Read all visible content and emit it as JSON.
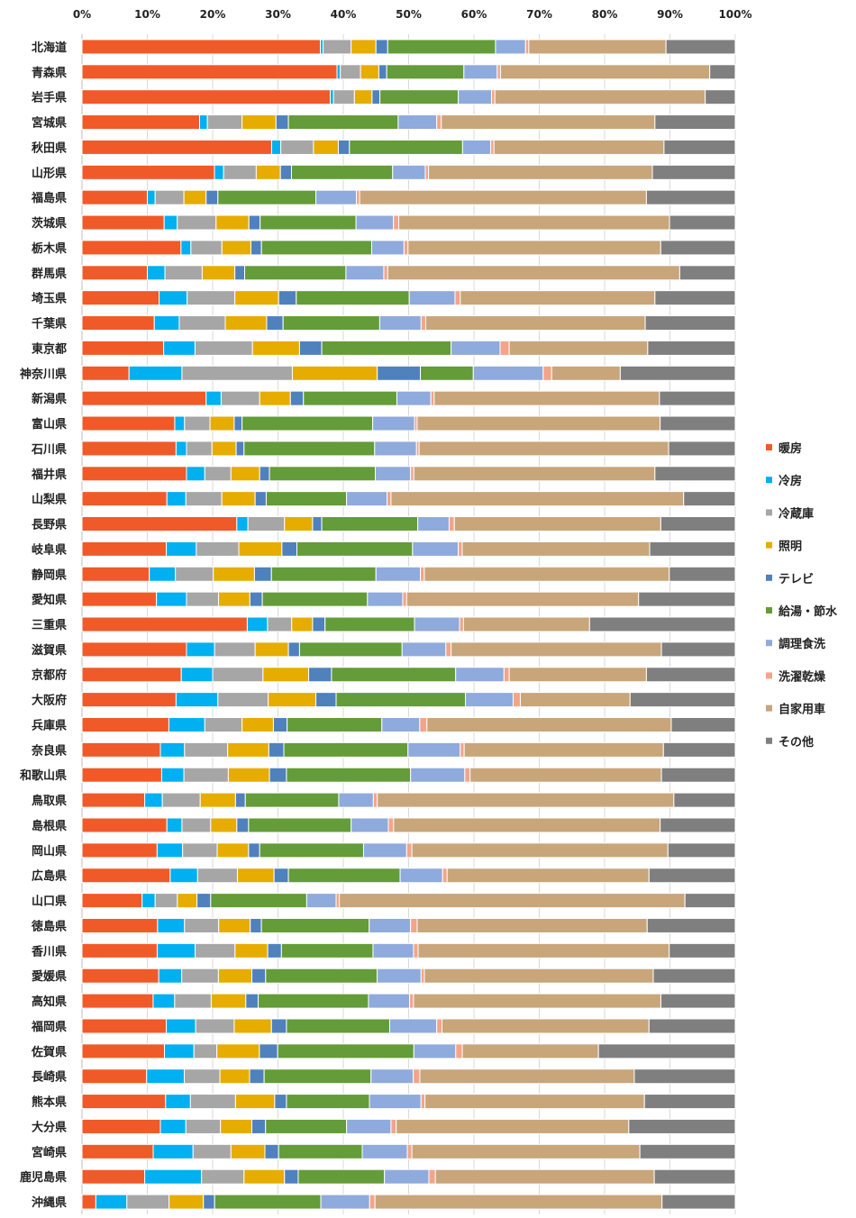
{
  "chart_data": {
    "type": "bar",
    "orientation": "horizontal",
    "stacked": "percent",
    "xlim": [
      0,
      100
    ],
    "x_ticks": [
      "0%",
      "10%",
      "20%",
      "30%",
      "40%",
      "50%",
      "60%",
      "70%",
      "80%",
      "90%",
      "100%"
    ],
    "x_tick_values": [
      0,
      10,
      20,
      30,
      40,
      50,
      60,
      70,
      80,
      90,
      100
    ],
    "grid": true,
    "legend_position": "right",
    "categories": [
      "北海道",
      "青森県",
      "岩手県",
      "宮城県",
      "秋田県",
      "山形県",
      "福島県",
      "茨城県",
      "栃木県",
      "群馬県",
      "埼玉県",
      "千葉県",
      "東京都",
      "神奈川県",
      "新潟県",
      "富山県",
      "石川県",
      "福井県",
      "山梨県",
      "長野県",
      "岐阜県",
      "静岡県",
      "愛知県",
      "三重県",
      "滋賀県",
      "京都府",
      "大阪府",
      "兵庫県",
      "奈良県",
      "和歌山県",
      "鳥取県",
      "島根県",
      "岡山県",
      "広島県",
      "山口県",
      "徳島県",
      "香川県",
      "愛媛県",
      "高知県",
      "福岡県",
      "佐賀県",
      "長崎県",
      "熊本県",
      "大分県",
      "宮崎県",
      "鹿児島県",
      "沖縄県"
    ],
    "series": [
      {
        "name": "暖房",
        "color": "#f05a28",
        "values": [
          36.5,
          39,
          38,
          18,
          29,
          20.3,
          10,
          12.5,
          15,
          10,
          11.8,
          11,
          12.5,
          7.2,
          19,
          14.2,
          14.4,
          16,
          13,
          23.7,
          12.9,
          10.3,
          11.4,
          25.3,
          16,
          15.2,
          14.4,
          13.3,
          12,
          12.2,
          9.6,
          13,
          11.5,
          13.5,
          9.2,
          11.5,
          11.5,
          11.7,
          10.9,
          12.9,
          12.6,
          9.8,
          12.8,
          12,
          10.9,
          9.6,
          2.1
        ]
      },
      {
        "name": "冷房",
        "color": "#00b0f0",
        "values": [
          0.4,
          0.5,
          0.5,
          1.2,
          1.4,
          1.4,
          1.2,
          2,
          1.5,
          2.7,
          4.3,
          3.8,
          4.8,
          8.1,
          2.3,
          1.5,
          1.6,
          2.8,
          2.9,
          1.7,
          4.6,
          4,
          4.6,
          3.1,
          4.3,
          4.8,
          6.4,
          5.5,
          3.7,
          3.4,
          2.7,
          2.3,
          3.9,
          4.2,
          2,
          4.1,
          5.8,
          3.5,
          3.3,
          4.5,
          4.5,
          5.7,
          3.8,
          3.9,
          6.1,
          8.7,
          4.7
        ]
      },
      {
        "name": "冷蔵庫",
        "color": "#a6a6a6",
        "values": [
          4.3,
          3.1,
          3.2,
          5.3,
          5,
          5,
          4.4,
          5.9,
          4.7,
          5.7,
          7.3,
          7,
          8.8,
          16.9,
          5.9,
          3.9,
          3.9,
          4,
          5.5,
          5.6,
          6.5,
          5.8,
          4.9,
          3.7,
          6.2,
          7.7,
          7.7,
          5.7,
          6.6,
          6.8,
          5.8,
          4.4,
          5.3,
          6.1,
          3.4,
          5.2,
          6.1,
          5.6,
          5.6,
          5.9,
          3.5,
          5.4,
          6.9,
          5.3,
          5.8,
          6.5,
          6.4
        ]
      },
      {
        "name": "照明",
        "color": "#e6ac00",
        "values": [
          3.8,
          2.8,
          2.7,
          5.2,
          3.8,
          3.7,
          3.4,
          5,
          4.4,
          5,
          6.7,
          6.3,
          7.2,
          13,
          4.7,
          3.7,
          3.7,
          4.4,
          5.1,
          4.3,
          6.6,
          6.3,
          4.8,
          3.2,
          5.1,
          7,
          7.3,
          4.8,
          6.3,
          6.3,
          5.4,
          4,
          4.8,
          5.6,
          3,
          4.8,
          5,
          5.1,
          5.3,
          5.7,
          6.5,
          4.5,
          6,
          4.8,
          5.2,
          6.2,
          5.2
        ]
      },
      {
        "name": "テレビ",
        "color": "#4f81bd",
        "values": [
          1.8,
          1.2,
          1.2,
          1.9,
          1.7,
          1.7,
          1.8,
          1.7,
          1.6,
          1.5,
          2.7,
          2.5,
          3.4,
          6.6,
          2,
          1.2,
          1.2,
          1.5,
          1.7,
          1.4,
          2.3,
          2.6,
          1.9,
          1.9,
          1.7,
          3.5,
          3.1,
          2.1,
          2.3,
          2.6,
          1.5,
          1.8,
          1.7,
          2.2,
          2.1,
          1.7,
          2.1,
          2.1,
          1.9,
          2.3,
          2.8,
          2.2,
          1.8,
          2.1,
          2.1,
          2.1,
          1.7
        ]
      },
      {
        "name": "給湯・節水",
        "color": "#639c38",
        "values": [
          16.5,
          11.8,
          12,
          16.8,
          17.3,
          15.5,
          15,
          14.6,
          16.7,
          15.5,
          17.3,
          14.7,
          19.8,
          8.1,
          14.3,
          20,
          20,
          16.2,
          12.3,
          14.7,
          17.7,
          16,
          16.1,
          13.7,
          15.7,
          19,
          19.8,
          14.5,
          19,
          19,
          14.3,
          15.7,
          15.9,
          17.1,
          14.7,
          16.4,
          14,
          17,
          16.9,
          15.8,
          20.8,
          16.2,
          12.7,
          12.4,
          12.8,
          13.2,
          16.1
        ]
      },
      {
        "name": "調理食洗",
        "color": "#8faadc",
        "values": [
          4.6,
          5.1,
          5.1,
          5.9,
          4.3,
          5,
          6.2,
          5.7,
          4.9,
          5.8,
          7,
          6.3,
          7.5,
          10.7,
          5.2,
          6.4,
          6.4,
          5.4,
          6.2,
          4.8,
          7,
          6.8,
          5.4,
          6.9,
          6.7,
          7.4,
          7.3,
          5.8,
          8,
          8.3,
          5.3,
          5.7,
          6.6,
          6.5,
          4.5,
          6.3,
          6.2,
          6.7,
          6.3,
          7.2,
          6.4,
          6.4,
          7.9,
          6.8,
          6.9,
          6.8,
          7.4
        ]
      },
      {
        "name": "洗濯乾燥",
        "color": "#f4a488",
        "values": [
          0.5,
          0.5,
          0.5,
          0.7,
          0.5,
          0.5,
          0.5,
          0.8,
          0.6,
          0.6,
          0.8,
          0.7,
          1.4,
          1.3,
          0.5,
          0.4,
          0.4,
          0.5,
          0.6,
          0.8,
          0.6,
          0.6,
          0.6,
          0.6,
          0.8,
          0.8,
          1.1,
          1.1,
          0.6,
          0.8,
          0.6,
          0.8,
          0.8,
          0.7,
          0.5,
          1,
          0.7,
          0.5,
          0.6,
          0.8,
          1,
          1,
          0.6,
          0.8,
          0.7,
          1,
          0.8
        ]
      },
      {
        "name": "自家用車",
        "color": "#c9a57a",
        "values": [
          21,
          32,
          32.2,
          32.7,
          26,
          34.3,
          43.9,
          41.2,
          38.3,
          44.7,
          29.8,
          33.4,
          21.2,
          10.5,
          34.5,
          37.2,
          38.2,
          36.9,
          44.8,
          31.6,
          28.7,
          37.5,
          35.5,
          19.3,
          32.2,
          21,
          16.8,
          37.4,
          30.5,
          29.3,
          45.4,
          40.8,
          39.2,
          30.9,
          52.9,
          35,
          38.4,
          34.9,
          37.9,
          31.7,
          20.8,
          32.5,
          33.6,
          35.6,
          34.9,
          33.5,
          43.5
        ]
      },
      {
        "name": "その他",
        "color": "#7f7f7f",
        "values": [
          10.6,
          3.9,
          4.6,
          12.3,
          10.9,
          12.7,
          13.6,
          10,
          11.3,
          8.5,
          12.3,
          13.7,
          13.4,
          17.6,
          11.6,
          11.5,
          10.2,
          12.3,
          7.9,
          11.4,
          13.1,
          10.1,
          14.8,
          22.3,
          11.3,
          13.6,
          16.1,
          9.8,
          11,
          11.3,
          9.4,
          11.5,
          10.3,
          13.2,
          7.7,
          13.4,
          10.1,
          12.5,
          11.4,
          13.2,
          20.9,
          15.3,
          13.9,
          16.3,
          14.6,
          12.4,
          11.1
        ]
      }
    ]
  }
}
